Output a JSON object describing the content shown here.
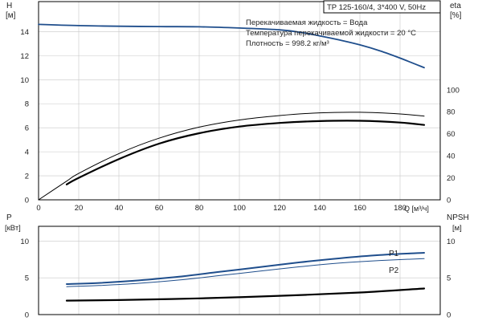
{
  "header": {
    "model": "TP 125-160/4, 3*400 V, 50Hz",
    "conditions": [
      "Перекачиваемая жидкость = Вода",
      "Температура перекачиваемой жидкости = 20 °C",
      "Плотность = 998.2 кг/м³"
    ]
  },
  "colors": {
    "blue": "#1f4e8c",
    "black": "#000000",
    "axis": "#000000"
  },
  "chart_data": [
    {
      "type": "line",
      "x_label": "Q [м³/ч]",
      "x_ticks": [
        0,
        20,
        40,
        60,
        80,
        100,
        120,
        140,
        160,
        180
      ],
      "xlim": [
        0,
        200
      ],
      "left_axis": {
        "title": "H",
        "unit": "[м]",
        "ticks": [
          0,
          2,
          4,
          6,
          8,
          10,
          12,
          14
        ],
        "ylim": [
          0,
          16.5
        ]
      },
      "right_axis": {
        "title": "eta",
        "unit": "[%]",
        "ticks": [
          0,
          20,
          40,
          60,
          80,
          100
        ],
        "ylim": [
          0,
          180
        ]
      },
      "series": [
        {
          "axis": "left",
          "color": "#1f4e8c",
          "stroke": 1.8,
          "x": [
            0,
            20,
            40,
            60,
            80,
            100,
            120,
            130,
            140,
            150,
            160,
            170,
            180,
            192
          ],
          "values": [
            14.6,
            14.5,
            14.45,
            14.42,
            14.4,
            14.3,
            14.15,
            13.95,
            13.65,
            13.3,
            12.9,
            12.4,
            11.8,
            11.0
          ]
        },
        {
          "axis": "right",
          "color": "#000000",
          "stroke": 1.0,
          "x": [
            0,
            14,
            20,
            40,
            60,
            80,
            100,
            120,
            140,
            160,
            180,
            192
          ],
          "values": [
            0,
            17,
            24,
            42,
            56,
            66,
            72.5,
            76.5,
            79,
            79.5,
            78,
            76
          ]
        },
        {
          "axis": "right",
          "color": "#000000",
          "stroke": 2.2,
          "x": [
            14,
            20,
            40,
            60,
            80,
            100,
            120,
            140,
            160,
            180,
            192
          ],
          "values": [
            14,
            20,
            37,
            51,
            60.5,
            66.5,
            69.8,
            71.5,
            71.8,
            70.2,
            68
          ]
        }
      ]
    },
    {
      "type": "line",
      "left_axis": {
        "title": "P",
        "unit": "[кВт]",
        "ticks": [
          0,
          5,
          10
        ],
        "ylim": [
          0,
          12
        ]
      },
      "right_axis": {
        "title": "NPSH",
        "unit": "[м]",
        "ticks": [
          0,
          5,
          10
        ],
        "ylim": [
          0,
          12
        ]
      },
      "xlim": [
        0,
        200
      ],
      "series": [
        {
          "name": "P1",
          "axis": "left",
          "color": "#1f4e8c",
          "stroke": 2.0,
          "x": [
            14,
            30,
            50,
            70,
            90,
            110,
            130,
            150,
            170,
            192
          ],
          "values": [
            4.15,
            4.3,
            4.65,
            5.15,
            5.8,
            6.45,
            7.1,
            7.65,
            8.1,
            8.4
          ]
        },
        {
          "name": "P2",
          "axis": "left",
          "color": "#1f4e8c",
          "stroke": 1.0,
          "x": [
            14,
            30,
            50,
            70,
            90,
            110,
            130,
            150,
            170,
            192
          ],
          "values": [
            3.8,
            3.95,
            4.25,
            4.7,
            5.3,
            5.9,
            6.5,
            7.0,
            7.35,
            7.6
          ]
        },
        {
          "axis": "right",
          "color": "#000000",
          "stroke": 2.2,
          "x": [
            14,
            40,
            80,
            120,
            160,
            192
          ],
          "values": [
            1.9,
            1.98,
            2.2,
            2.55,
            3.0,
            3.55
          ]
        }
      ]
    }
  ]
}
